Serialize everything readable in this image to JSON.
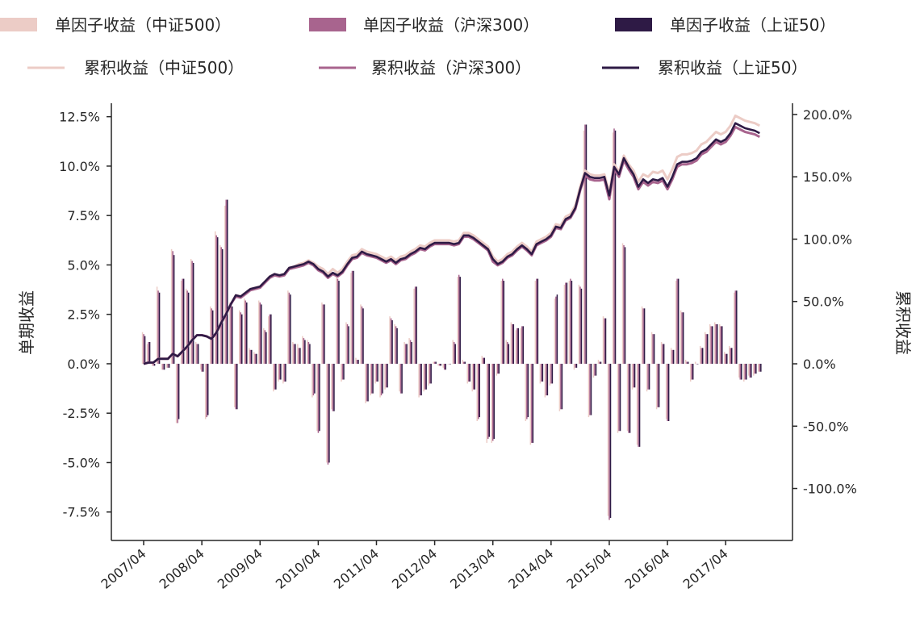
{
  "chart_data": {
    "type": "bar+line",
    "ylabel_left": "单期收益",
    "ylabel_right": "累积收益",
    "ylim_left": [
      -8.94,
      13.18
    ],
    "ylim_right": [
      -141.7,
      209
    ],
    "yticks_left": [
      "12.5%",
      "10.0%",
      "7.5%",
      "5.0%",
      "2.5%",
      "0.0%",
      "-2.5%",
      "-5.0%",
      "-7.5%"
    ],
    "yticks_left_values": [
      12.5,
      10,
      7.5,
      5,
      2.5,
      0,
      -2.5,
      -5,
      -7.5
    ],
    "yticks_right": [
      "200.0%",
      "150.0%",
      "100.0%",
      "50.0%",
      "0.0%",
      "-50.0%",
      "-100.0%"
    ],
    "yticks_right_values": [
      200,
      150,
      100,
      50,
      0,
      -50,
      -100
    ],
    "xticks": [
      "2007/04",
      "2008/04",
      "2009/04",
      "2010/04",
      "2011/04",
      "2012/04",
      "2013/04",
      "2014/04",
      "2015/04",
      "2016/04",
      "2017/04"
    ],
    "x_start": "2007/04",
    "x_end": "2017/11",
    "frequency": "monthly",
    "grid": false,
    "legend_placement": "top",
    "bar_series": [
      {
        "name": "单因子收益（中证500）",
        "color": "#ecccc6",
        "values": [
          1.6,
          1.0,
          -0.1,
          3.9,
          -0.3,
          -0.2,
          5.8,
          -3.0,
          4.2,
          3.8,
          5.3,
          1.1,
          -0.3,
          -2.8,
          2.9,
          6.7,
          6.0,
          8.0,
          3.1,
          -2.2,
          2.7,
          3.3,
          0.8,
          0.6,
          3.2,
          1.8,
          2.4,
          -1.4,
          -0.9,
          -1.0,
          3.7,
          1.1,
          1.0,
          1.4,
          1.2,
          -1.7,
          -3.4,
          3.1,
          -5.0,
          -2.3,
          4.4,
          -0.9,
          2.1,
          4.6,
          0.3,
          3.0,
          -2.0,
          -1.6,
          -1.0,
          -1.7,
          -1.3,
          2.4,
          2.0,
          -1.4,
          1.1,
          1.3,
          3.8,
          -1.7,
          -1.4,
          -1.1,
          0.1,
          -0.1,
          -0.2,
          0.0,
          1.2,
          4.4,
          0.2,
          -1.0,
          -1.4,
          -2.9,
          0.4,
          -4.0,
          -4.0,
          -0.6,
          4.2,
          1.2,
          2.1,
          1.7,
          1.8,
          -2.9,
          -4.1,
          4.2,
          -1.0,
          -1.7,
          -1.1,
          3.3,
          -2.4,
          4.0,
          4.2,
          -0.3,
          4.0,
          11.8,
          -2.7,
          -0.7,
          0.2,
          2.4,
          -7.7,
          11.7,
          -3.5,
          6.1,
          -3.4,
          -1.3,
          -4.1,
          2.9,
          -1.4,
          1.6,
          -2.3,
          1.1,
          -2.8,
          0.8,
          4.2,
          2.7,
          0.2,
          -0.9,
          0.1,
          0.9,
          1.6,
          2.0,
          2.1,
          2.0,
          0.6,
          0.9,
          3.6,
          -0.7,
          -0.9,
          -0.6,
          -0.6,
          -0.4
        ]
      },
      {
        "name": "单因子收益（沪深300）",
        "color": "#a8648e",
        "values": [
          1.5,
          1.1,
          -0.1,
          3.7,
          -0.3,
          -0.2,
          5.7,
          -3.0,
          4.3,
          3.7,
          5.2,
          1.0,
          -0.4,
          -2.7,
          2.8,
          6.5,
          5.9,
          8.3,
          3.0,
          -2.3,
          2.6,
          3.2,
          0.7,
          0.5,
          3.1,
          1.7,
          2.5,
          -1.3,
          -0.8,
          -0.9,
          3.6,
          1.0,
          0.8,
          1.3,
          1.1,
          -1.6,
          -3.5,
          3.0,
          -5.1,
          -2.4,
          4.3,
          -0.8,
          2.0,
          4.7,
          0.2,
          2.9,
          -1.9,
          -1.5,
          -0.9,
          -1.6,
          -1.2,
          2.3,
          1.9,
          -1.5,
          1.0,
          1.2,
          3.9,
          -1.6,
          -1.3,
          -1.0,
          0.1,
          -0.1,
          -0.3,
          0.0,
          1.1,
          4.5,
          0.1,
          -0.9,
          -1.3,
          -2.8,
          0.3,
          -3.8,
          -3.9,
          -0.5,
          4.3,
          1.1,
          2.0,
          1.8,
          1.9,
          -2.8,
          -4.0,
          4.3,
          -0.9,
          -1.6,
          -1.0,
          3.4,
          -2.3,
          4.1,
          4.3,
          -0.2,
          3.9,
          12.1,
          -2.6,
          -0.6,
          0.1,
          2.3,
          -7.9,
          11.9,
          -3.4,
          6.0,
          -3.5,
          -1.2,
          -4.2,
          2.8,
          -1.3,
          1.5,
          -2.2,
          1.0,
          -2.9,
          0.7,
          4.3,
          2.6,
          0.1,
          -0.8,
          0.0,
          0.8,
          1.5,
          1.9,
          2.0,
          1.9,
          0.5,
          0.8,
          3.7,
          -0.8,
          -0.8,
          -0.7,
          -0.5,
          -0.4
        ]
      },
      {
        "name": "单因子收益（上证50）",
        "color": "#2e1a45",
        "values": [
          1.4,
          1.1,
          -0.1,
          3.6,
          -0.3,
          -0.2,
          5.5,
          -2.8,
          4.3,
          3.6,
          5.1,
          1.0,
          -0.4,
          -2.6,
          2.7,
          6.4,
          5.8,
          8.3,
          2.9,
          -2.3,
          2.5,
          3.1,
          0.7,
          0.5,
          3.0,
          1.6,
          2.5,
          -1.3,
          -0.8,
          -0.9,
          3.5,
          1.0,
          0.8,
          1.2,
          1.0,
          -1.5,
          -3.4,
          3.0,
          -5.0,
          -2.4,
          4.2,
          -0.8,
          1.9,
          4.7,
          0.2,
          2.8,
          -1.9,
          -1.5,
          -0.9,
          -1.5,
          -1.2,
          2.2,
          1.8,
          -1.5,
          1.0,
          1.1,
          3.9,
          -1.6,
          -1.3,
          -1.0,
          0.1,
          -0.1,
          -0.3,
          0.0,
          1.0,
          4.4,
          0.1,
          -0.9,
          -1.3,
          -2.7,
          0.3,
          -3.7,
          -3.8,
          -0.5,
          4.2,
          1.0,
          2.0,
          1.8,
          1.9,
          -2.7,
          -4.0,
          4.3,
          -0.9,
          -1.6,
          -1.0,
          3.5,
          -2.3,
          4.1,
          4.2,
          -0.2,
          3.8,
          12.1,
          -2.6,
          -0.6,
          0.1,
          2.3,
          -7.8,
          11.8,
          -3.4,
          5.9,
          -3.5,
          -1.2,
          -4.2,
          2.8,
          -1.3,
          1.5,
          -2.2,
          1.0,
          -2.9,
          0.7,
          4.3,
          2.6,
          0.1,
          -0.8,
          0.0,
          0.8,
          1.5,
          1.9,
          2.0,
          1.9,
          0.5,
          0.8,
          3.7,
          -0.8,
          -0.8,
          -0.7,
          -0.5,
          -0.4
        ]
      }
    ],
    "line_series": [
      {
        "name": "累积收益（中证500）",
        "color": "#ecccc6",
        "values": [
          0,
          1,
          1,
          4,
          4,
          4,
          8,
          6,
          10,
          14,
          19,
          23,
          23,
          22,
          20,
          25,
          33,
          40,
          48,
          55,
          54,
          57,
          60,
          61,
          62,
          66,
          70,
          72,
          71,
          72,
          77,
          78,
          80,
          81,
          83,
          81,
          78,
          76,
          72,
          76,
          73,
          76,
          82,
          87,
          88,
          92,
          90,
          89,
          88,
          86,
          84,
          86,
          83,
          86,
          87,
          90,
          92,
          95,
          94,
          97,
          99,
          99,
          99,
          99,
          98,
          99,
          105,
          105,
          103,
          100,
          97,
          94,
          86,
          82,
          84,
          88,
          90,
          94,
          97,
          94,
          90,
          98,
          100,
          102,
          105,
          112,
          111,
          118,
          120,
          127,
          142,
          155,
          152,
          151,
          151,
          152,
          138,
          160,
          154,
          167,
          160,
          155,
          146,
          152,
          150,
          154,
          153,
          155,
          148,
          156,
          166,
          168,
          168,
          169,
          171,
          176,
          178,
          182,
          186,
          184,
          186,
          191,
          199,
          197,
          195,
          194,
          193,
          191
        ]
      },
      {
        "name": "累积收益（沪深300）",
        "color": "#a8648e",
        "values": [
          0,
          1,
          1,
          4,
          4,
          4,
          8,
          6,
          10,
          14,
          19,
          23,
          23,
          22,
          20,
          25,
          33,
          40,
          48,
          54,
          53,
          56,
          59,
          60,
          61,
          65,
          69,
          71,
          70,
          71,
          76,
          77,
          78,
          79,
          81,
          79,
          75,
          73,
          69,
          72,
          70,
          73,
          79,
          84,
          85,
          89,
          87,
          86,
          85,
          83,
          81,
          83,
          80,
          83,
          84,
          87,
          89,
          92,
          91,
          94,
          96,
          96,
          96,
          96,
          95,
          96,
          102,
          102,
          100,
          97,
          94,
          91,
          82,
          79,
          81,
          85,
          87,
          91,
          94,
          91,
          87,
          95,
          97,
          99,
          102,
          109,
          108,
          115,
          117,
          124,
          139,
          151,
          148,
          147,
          147,
          148,
          132,
          156,
          150,
          163,
          156,
          150,
          140,
          146,
          143,
          146,
          145,
          147,
          140,
          148,
          158,
          160,
          160,
          161,
          163,
          168,
          170,
          174,
          178,
          176,
          178,
          183,
          190,
          188,
          186,
          185,
          184,
          182
        ]
      },
      {
        "name": "累积收益（上证50）",
        "color": "#2e1a45",
        "values": [
          0,
          1,
          1,
          4,
          4,
          4,
          8,
          6,
          10,
          14,
          19,
          23,
          23,
          22,
          20,
          25,
          33,
          40,
          48,
          55,
          54,
          57,
          60,
          61,
          62,
          66,
          70,
          72,
          71,
          72,
          77,
          78,
          79,
          80,
          82,
          80,
          76,
          74,
          70,
          73,
          71,
          74,
          80,
          85,
          86,
          90,
          88,
          87,
          86,
          84,
          82,
          84,
          81,
          84,
          85,
          88,
          90,
          93,
          92,
          95,
          97,
          97,
          97,
          97,
          96,
          97,
          103,
          103,
          101,
          98,
          95,
          92,
          84,
          80,
          82,
          86,
          88,
          92,
          95,
          92,
          88,
          96,
          98,
          100,
          103,
          110,
          109,
          116,
          118,
          125,
          140,
          153,
          150,
          149,
          149,
          150,
          135,
          158,
          152,
          165,
          158,
          152,
          142,
          148,
          145,
          148,
          147,
          149,
          142,
          150,
          160,
          162,
          162,
          163,
          165,
          170,
          172,
          176,
          180,
          178,
          180,
          185,
          193,
          191,
          189,
          188,
          187,
          185
        ]
      }
    ]
  }
}
